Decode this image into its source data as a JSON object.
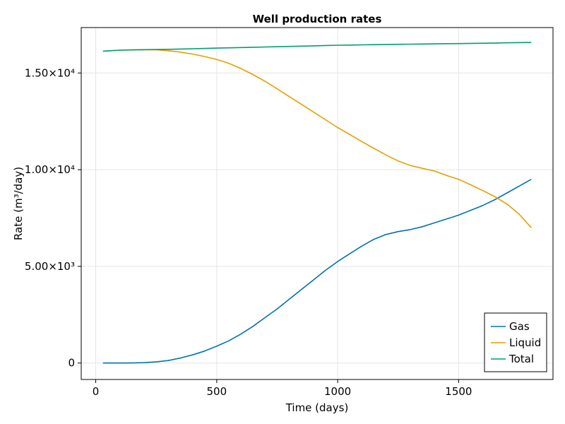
{
  "chart_data": {
    "type": "line",
    "title": "Well production rates",
    "xlabel": "Time (days)",
    "ylabel": "Rate (m³/day)",
    "xlim": [
      -60,
      1890
    ],
    "ylim": [
      -850,
      17350
    ],
    "x_ticks": [
      0,
      500,
      1000,
      1500
    ],
    "x_tick_labels": [
      "0",
      "500",
      "1000",
      "1500"
    ],
    "y_ticks": [
      0,
      5000,
      10000,
      15000
    ],
    "y_tick_labels": [
      "0",
      "5.00×10³",
      "1.00×10⁴",
      "1.50×10⁴"
    ],
    "grid": true,
    "legend_position": "bottom-right",
    "x": [
      30,
      100,
      150,
      200,
      250,
      300,
      350,
      400,
      450,
      500,
      550,
      600,
      650,
      700,
      750,
      800,
      850,
      900,
      950,
      1000,
      1050,
      1100,
      1150,
      1200,
      1250,
      1300,
      1350,
      1400,
      1450,
      1500,
      1550,
      1600,
      1650,
      1700,
      1750,
      1800
    ],
    "series": [
      {
        "name": "Gas",
        "color": "#0072b2",
        "values": [
          0,
          0,
          5,
          20,
          60,
          130,
          260,
          420,
          620,
          870,
          1150,
          1500,
          1900,
          2350,
          2800,
          3300,
          3800,
          4300,
          4800,
          5250,
          5650,
          6050,
          6400,
          6650,
          6800,
          6900,
          7050,
          7250,
          7450,
          7650,
          7900,
          8150,
          8450,
          8800,
          9150,
          9500
        ]
      },
      {
        "name": "Liquid",
        "color": "#e69f00",
        "values": [
          16130,
          16180,
          16190,
          16200,
          16200,
          16150,
          16080,
          15980,
          15850,
          15700,
          15500,
          15230,
          14920,
          14570,
          14180,
          13780,
          13380,
          12980,
          12580,
          12180,
          11820,
          11450,
          11100,
          10760,
          10450,
          10220,
          10070,
          9930,
          9700,
          9500,
          9220,
          8920,
          8600,
          8220,
          7700,
          7000
        ]
      },
      {
        "name": "Total",
        "color": "#009e73",
        "values": [
          16130,
          16180,
          16195,
          16205,
          16215,
          16225,
          16240,
          16255,
          16270,
          16285,
          16300,
          16315,
          16330,
          16345,
          16360,
          16375,
          16390,
          16405,
          16420,
          16435,
          16445,
          16455,
          16465,
          16475,
          16485,
          16490,
          16500,
          16505,
          16515,
          16520,
          16530,
          16540,
          16550,
          16560,
          16570,
          16580
        ]
      }
    ]
  }
}
